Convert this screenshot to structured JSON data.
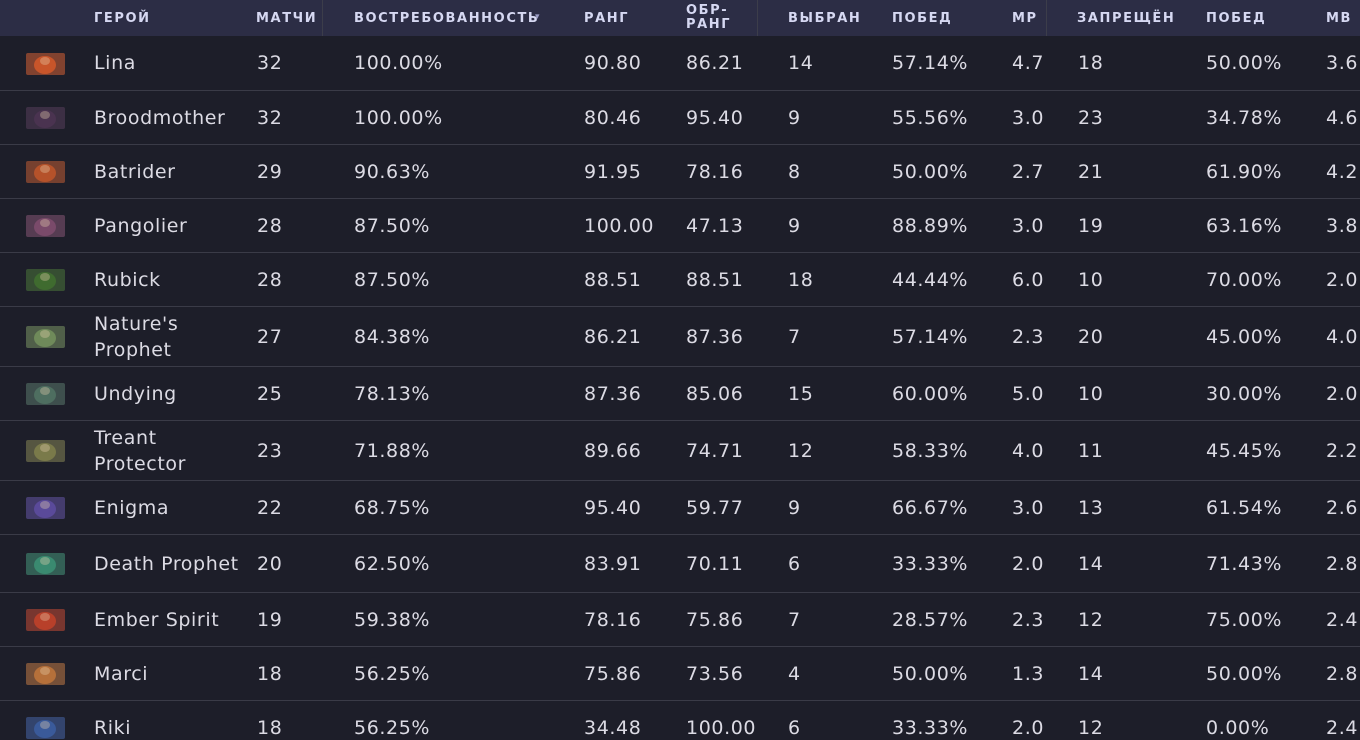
{
  "table": {
    "headers": {
      "hero": "ГЕРОЙ",
      "matches": "МАТЧИ",
      "demand": "ВОСТРЕБОВАННОСТЬ",
      "rank": "РАНГ",
      "rev_rank": "ОБР-\nРАНГ",
      "picked": "ВЫБРАН",
      "pick_wins": "ПОБЕД",
      "mp": "МР",
      "banned": "ЗАПРЕЩЁН",
      "ban_wins": "ПОБЕД",
      "mb": "МВ"
    },
    "sort_indicator": "▾",
    "rows": [
      {
        "hero": "Lina",
        "portrait_color": "#c8552a",
        "matches": "32",
        "demand": "100.00%",
        "rank": "90.80",
        "rev_rank": "86.21",
        "picked": "14",
        "pick_wins": "57.14%",
        "mp": "4.7",
        "banned": "18",
        "ban_wins": "50.00%",
        "mb": "3.6"
      },
      {
        "hero": "Broodmother",
        "portrait_color": "#4a3350",
        "matches": "32",
        "demand": "100.00%",
        "rank": "80.46",
        "rev_rank": "95.40",
        "picked": "9",
        "pick_wins": "55.56%",
        "mp": "3.0",
        "banned": "23",
        "ban_wins": "34.78%",
        "mb": "4.6"
      },
      {
        "hero": "Batrider",
        "portrait_color": "#b5522a",
        "matches": "29",
        "demand": "90.63%",
        "rank": "91.95",
        "rev_rank": "78.16",
        "picked": "8",
        "pick_wins": "50.00%",
        "mp": "2.7",
        "banned": "21",
        "ban_wins": "61.90%",
        "mb": "4.2"
      },
      {
        "hero": "Pangolier",
        "portrait_color": "#7a4a6a",
        "matches": "28",
        "demand": "87.50%",
        "rank": "100.00",
        "rev_rank": "47.13",
        "picked": "9",
        "pick_wins": "88.89%",
        "mp": "3.0",
        "banned": "19",
        "ban_wins": "63.16%",
        "mb": "3.8"
      },
      {
        "hero": "Rubick",
        "portrait_color": "#3f6b2f",
        "matches": "28",
        "demand": "87.50%",
        "rank": "88.51",
        "rev_rank": "88.51",
        "picked": "18",
        "pick_wins": "44.44%",
        "mp": "6.0",
        "banned": "10",
        "ban_wins": "70.00%",
        "mb": "2.0"
      },
      {
        "hero": "Nature's Prophet",
        "portrait_color": "#6f8a5a",
        "matches": "27",
        "demand": "84.38%",
        "rank": "86.21",
        "rev_rank": "87.36",
        "picked": "7",
        "pick_wins": "57.14%",
        "mp": "2.3",
        "banned": "20",
        "ban_wins": "45.00%",
        "mb": "4.0"
      },
      {
        "hero": "Undying",
        "portrait_color": "#4e6e60",
        "matches": "25",
        "demand": "78.13%",
        "rank": "87.36",
        "rev_rank": "85.06",
        "picked": "15",
        "pick_wins": "60.00%",
        "mp": "5.0",
        "banned": "10",
        "ban_wins": "30.00%",
        "mb": "2.0"
      },
      {
        "hero": "Treant Protector",
        "portrait_color": "#7a7a4a",
        "matches": "23",
        "demand": "71.88%",
        "rank": "89.66",
        "rev_rank": "74.71",
        "picked": "12",
        "pick_wins": "58.33%",
        "mp": "4.0",
        "banned": "11",
        "ban_wins": "45.45%",
        "mb": "2.2"
      },
      {
        "hero": "Enigma",
        "portrait_color": "#5a4a9a",
        "matches": "22",
        "demand": "68.75%",
        "rank": "95.40",
        "rev_rank": "59.77",
        "picked": "9",
        "pick_wins": "66.67%",
        "mp": "3.0",
        "banned": "13",
        "ban_wins": "61.54%",
        "mb": "2.6"
      },
      {
        "hero": "Death Prophet",
        "portrait_color": "#3a8a70",
        "matches": "20",
        "demand": "62.50%",
        "rank": "83.91",
        "rev_rank": "70.11",
        "picked": "6",
        "pick_wins": "33.33%",
        "mp": "2.0",
        "banned": "14",
        "ban_wins": "71.43%",
        "mb": "2.8"
      },
      {
        "hero": "Ember Spirit",
        "portrait_color": "#b8402a",
        "matches": "19",
        "demand": "59.38%",
        "rank": "78.16",
        "rev_rank": "75.86",
        "picked": "7",
        "pick_wins": "28.57%",
        "mp": "2.3",
        "banned": "12",
        "ban_wins": "75.00%",
        "mb": "2.4"
      },
      {
        "hero": "Marci",
        "portrait_color": "#b5703a",
        "matches": "18",
        "demand": "56.25%",
        "rank": "75.86",
        "rev_rank": "73.56",
        "picked": "4",
        "pick_wins": "50.00%",
        "mp": "1.3",
        "banned": "14",
        "ban_wins": "50.00%",
        "mb": "2.8"
      },
      {
        "hero": "Riki",
        "portrait_color": "#3a5a9a",
        "matches": "18",
        "demand": "56.25%",
        "rank": "34.48",
        "rev_rank": "100.00",
        "picked": "6",
        "pick_wins": "33.33%",
        "mp": "2.0",
        "banned": "12",
        "ban_wins": "0.00%",
        "mb": "2.4"
      }
    ]
  }
}
